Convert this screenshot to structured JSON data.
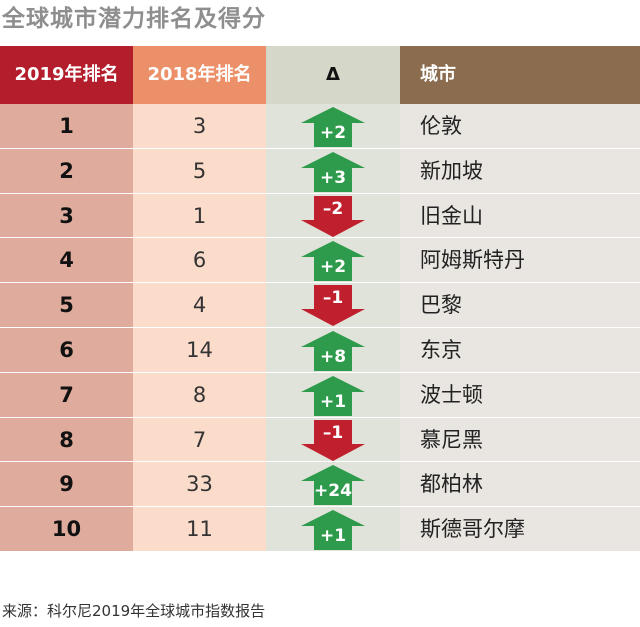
{
  "title": "全球城市潜力排名及得分",
  "colors": {
    "header_2019": "#b31d2c",
    "header_2018": "#ec9069",
    "header_delta": "#d5d8c8",
    "header_city": "#8b6c4f",
    "col_2019": "#dfab9c",
    "col_2018": "#fbdccb",
    "col_delta": "#e0e3d9",
    "col_city": "#e9e6e1",
    "up": "#2e9a4b",
    "down": "#c0202d"
  },
  "source": "来源：科尔尼2019年全球城市指数报告",
  "chart_data": {
    "type": "table",
    "title": "全球城市潜力排名及得分",
    "columns": [
      "2019年排名",
      "2018年排名",
      "Δ",
      "城市"
    ],
    "rows": [
      {
        "rank_2019": "1",
        "rank_2018": "3",
        "delta": "+2",
        "direction": "up",
        "city": "伦敦"
      },
      {
        "rank_2019": "2",
        "rank_2018": "5",
        "delta": "+3",
        "direction": "up",
        "city": "新加坡"
      },
      {
        "rank_2019": "3",
        "rank_2018": "1",
        "delta": "–2",
        "direction": "down",
        "city": "旧金山"
      },
      {
        "rank_2019": "4",
        "rank_2018": "6",
        "delta": "+2",
        "direction": "up",
        "city": "阿姆斯特丹"
      },
      {
        "rank_2019": "5",
        "rank_2018": "4",
        "delta": "–1",
        "direction": "down",
        "city": "巴黎"
      },
      {
        "rank_2019": "6",
        "rank_2018": "14",
        "delta": "+8",
        "direction": "up",
        "city": "东京"
      },
      {
        "rank_2019": "7",
        "rank_2018": "8",
        "delta": "+1",
        "direction": "up",
        "city": "波士顿"
      },
      {
        "rank_2019": "8",
        "rank_2018": "7",
        "delta": "–1",
        "direction": "down",
        "city": "慕尼黑"
      },
      {
        "rank_2019": "9",
        "rank_2018": "33",
        "delta": "+24",
        "direction": "up",
        "city": "都柏林"
      },
      {
        "rank_2019": "10",
        "rank_2018": "11",
        "delta": "+1",
        "direction": "up",
        "city": "斯德哥尔摩"
      }
    ]
  }
}
